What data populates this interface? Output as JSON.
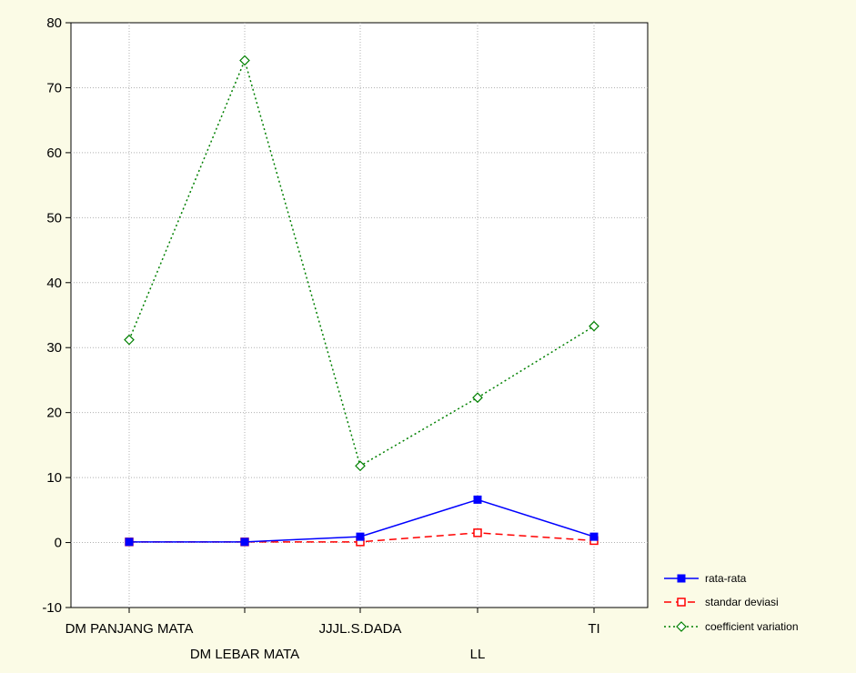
{
  "chart_data": {
    "type": "line",
    "title": "",
    "xlabel": "",
    "ylabel": "",
    "categories": [
      "DM PANJANG MATA",
      "DM LEBAR MATA",
      "JJJL.S.DADA",
      "LL",
      "TI"
    ],
    "ylim": [
      -10,
      80
    ],
    "yticks": [
      -10,
      0,
      10,
      20,
      30,
      40,
      50,
      60,
      70,
      80
    ],
    "grid": true,
    "legend_position": "bottom-right",
    "series": [
      {
        "name": "rata-rata",
        "values": [
          0.1,
          0.1,
          0.9,
          6.6,
          0.9
        ],
        "color": "#0000ff",
        "line": "solid",
        "marker": "filled-square"
      },
      {
        "name": "standar deviasi",
        "values": [
          0.1,
          0.1,
          0.1,
          1.5,
          0.3
        ],
        "color": "#ff0000",
        "line": "dashed",
        "marker": "open-square"
      },
      {
        "name": "coefficient variation",
        "values": [
          31.2,
          74.2,
          11.8,
          22.3,
          33.3
        ],
        "color": "#008000",
        "line": "dotted",
        "marker": "open-diamond"
      }
    ]
  }
}
